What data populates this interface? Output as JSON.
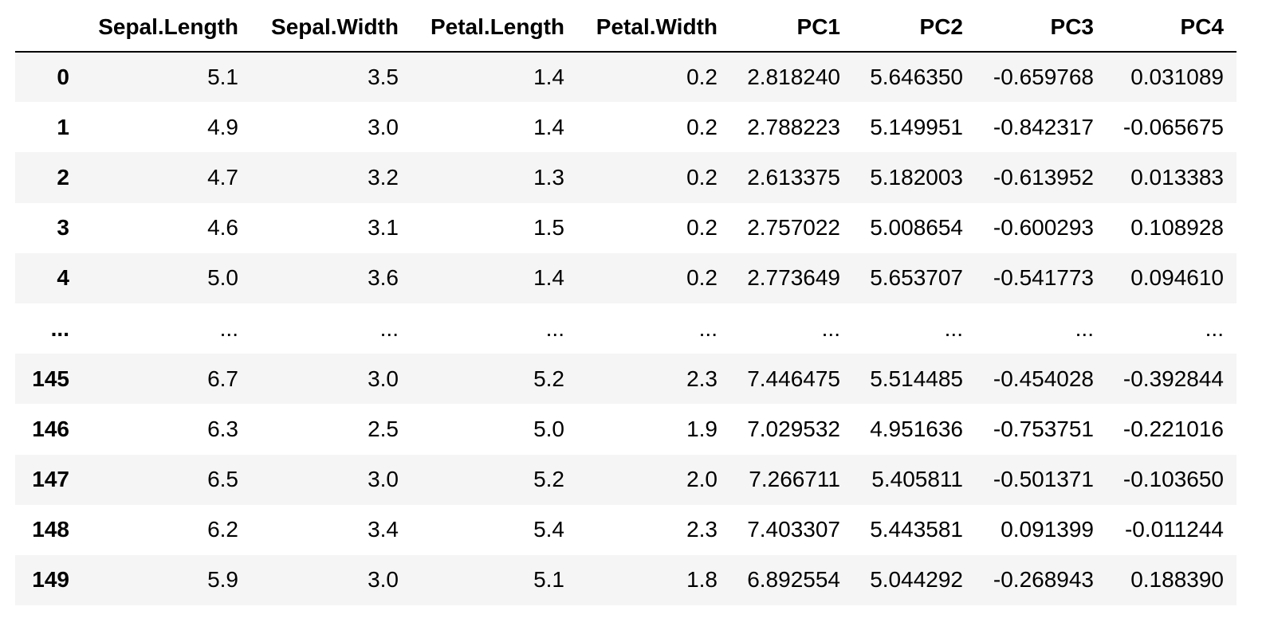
{
  "table": {
    "columns": [
      "",
      "Sepal.Length",
      "Sepal.Width",
      "Petal.Length",
      "Petal.Width",
      "PC1",
      "PC2",
      "PC3",
      "PC4"
    ],
    "rows": [
      {
        "index": "0",
        "values": [
          "5.1",
          "3.5",
          "1.4",
          "0.2",
          "2.818240",
          "5.646350",
          "-0.659768",
          "0.031089"
        ]
      },
      {
        "index": "1",
        "values": [
          "4.9",
          "3.0",
          "1.4",
          "0.2",
          "2.788223",
          "5.149951",
          "-0.842317",
          "-0.065675"
        ]
      },
      {
        "index": "2",
        "values": [
          "4.7",
          "3.2",
          "1.3",
          "0.2",
          "2.613375",
          "5.182003",
          "-0.613952",
          "0.013383"
        ]
      },
      {
        "index": "3",
        "values": [
          "4.6",
          "3.1",
          "1.5",
          "0.2",
          "2.757022",
          "5.008654",
          "-0.600293",
          "0.108928"
        ]
      },
      {
        "index": "4",
        "values": [
          "5.0",
          "3.6",
          "1.4",
          "0.2",
          "2.773649",
          "5.653707",
          "-0.541773",
          "0.094610"
        ]
      },
      {
        "index": "...",
        "values": [
          "...",
          "...",
          "...",
          "...",
          "...",
          "...",
          "...",
          "..."
        ]
      },
      {
        "index": "145",
        "values": [
          "6.7",
          "3.0",
          "5.2",
          "2.3",
          "7.446475",
          "5.514485",
          "-0.454028",
          "-0.392844"
        ]
      },
      {
        "index": "146",
        "values": [
          "6.3",
          "2.5",
          "5.0",
          "1.9",
          "7.029532",
          "4.951636",
          "-0.753751",
          "-0.221016"
        ]
      },
      {
        "index": "147",
        "values": [
          "6.5",
          "3.0",
          "5.2",
          "2.0",
          "7.266711",
          "5.405811",
          "-0.501371",
          "-0.103650"
        ]
      },
      {
        "index": "148",
        "values": [
          "6.2",
          "3.4",
          "5.4",
          "2.3",
          "7.403307",
          "5.443581",
          "0.091399",
          "-0.011244"
        ]
      },
      {
        "index": "149",
        "values": [
          "5.9",
          "3.0",
          "5.1",
          "1.8",
          "6.892554",
          "5.044292",
          "-0.268943",
          "0.188390"
        ]
      }
    ]
  }
}
